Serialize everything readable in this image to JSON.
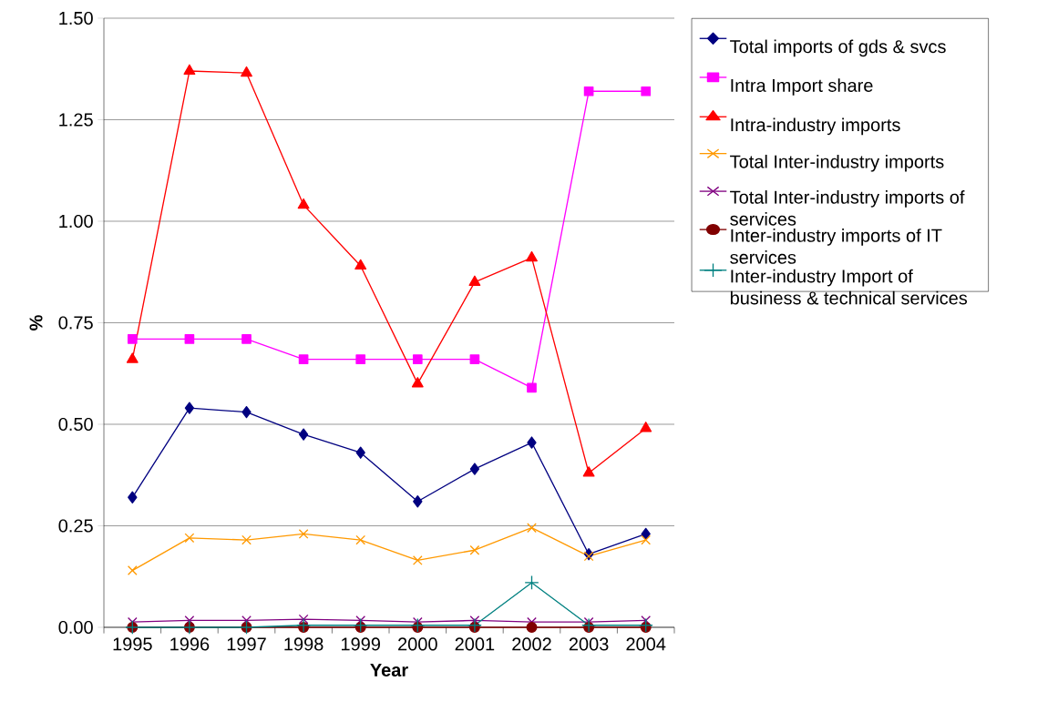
{
  "chart_data": {
    "type": "line",
    "xlabel": "Year",
    "ylabel": "%",
    "categories": [
      "1995",
      "1996",
      "1997",
      "1998",
      "1999",
      "2000",
      "2001",
      "2002",
      "2003",
      "2004"
    ],
    "ylim": [
      0,
      1.5
    ],
    "yticks": [
      {
        "value": 0,
        "label": "0.00"
      },
      {
        "value": 0.25,
        "label": "0.25"
      },
      {
        "value": 0.5,
        "label": "0.50"
      },
      {
        "value": 0.75,
        "label": "0.75"
      },
      {
        "value": 1,
        "label": "1.00"
      },
      {
        "value": 1.25,
        "label": "1.25"
      },
      {
        "value": 1.5,
        "label": "1.50"
      }
    ],
    "grid": "y",
    "legend": "right",
    "line_style": "solid",
    "series": [
      {
        "name": "Total imports of gds & svcs",
        "color": "#000080",
        "marker": "diamond",
        "values": [
          0.32,
          0.54,
          0.53,
          0.475,
          0.43,
          0.31,
          0.39,
          0.455,
          0.18,
          0.23
        ]
      },
      {
        "name": "Intra Import share",
        "color": "#ff00ff",
        "marker": "square",
        "values": [
          0.71,
          0.71,
          0.71,
          0.66,
          0.66,
          0.66,
          0.66,
          0.59,
          1.32,
          1.32
        ]
      },
      {
        "name": "Intra-industry imports",
        "color": "#ff0000",
        "marker": "triangle",
        "values": [
          0.66,
          1.37,
          1.365,
          1.04,
          0.89,
          0.6,
          0.85,
          0.91,
          0.38,
          0.49
        ]
      },
      {
        "name": "Total Inter-industry imports",
        "color": "#ff9900",
        "marker": "cross",
        "values": [
          0.14,
          0.22,
          0.215,
          0.23,
          0.215,
          0.165,
          0.19,
          0.245,
          0.175,
          0.215
        ]
      },
      {
        "name": "Total Inter-industry imports of services",
        "color": "#800080",
        "marker": "cross",
        "values": [
          0.013,
          0.017,
          0.017,
          0.02,
          0.017,
          0.013,
          0.017,
          0.013,
          0.013,
          0.017
        ]
      },
      {
        "name": "Inter-industry imports of IT services",
        "color": "#800000",
        "marker": "circle",
        "values": [
          0,
          0,
          0,
          0,
          0,
          0,
          0,
          0,
          0,
          0
        ]
      },
      {
        "name": "Inter-industry Import of business & technical services",
        "color": "#008080",
        "marker": "plus",
        "values": [
          0,
          0,
          0,
          0.005,
          0.005,
          0.005,
          0.005,
          0.11,
          0.005,
          0.005
        ]
      }
    ]
  }
}
